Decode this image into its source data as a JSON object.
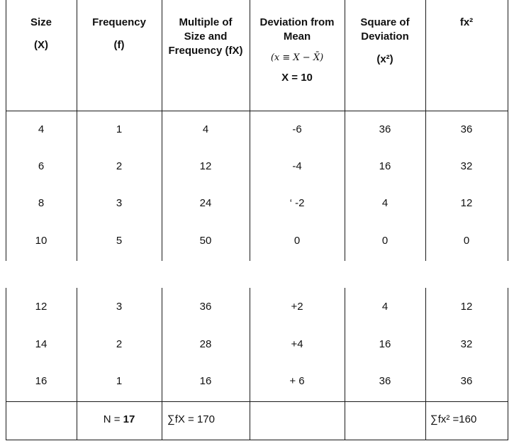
{
  "header": {
    "c0": {
      "line1": "Size",
      "line2": "(X)"
    },
    "c1": {
      "line1": "Frequency",
      "line2": "(f)"
    },
    "c2": {
      "line1": "Multiple of",
      "line2": "Size and",
      "line3": "Frequency (fX)"
    },
    "c3": {
      "line1": "Deviation from",
      "line2": "Mean",
      "formula": "(x ≡ X − X̄)",
      "mean": "X = 10"
    },
    "c4": {
      "line1": "Square of",
      "line2": "Deviation",
      "line3": "(x²)"
    },
    "c5": {
      "line1": "fx²"
    }
  },
  "rows": [
    [
      "4",
      "1",
      "4",
      "-6",
      "36",
      "36"
    ],
    [
      "6",
      "2",
      "12",
      "-4",
      "16",
      "32"
    ],
    [
      "8",
      "3",
      "24",
      "‘ -2",
      "4",
      "12"
    ],
    [
      "10",
      "5",
      "50",
      "0",
      "0",
      "0"
    ],
    [
      "12",
      "3",
      "36",
      "+2",
      "4",
      "12"
    ],
    [
      "14",
      "2",
      "28",
      "+4",
      "16",
      "32"
    ],
    [
      "16",
      "1",
      "16",
      "+ 6",
      "36",
      "36"
    ]
  ],
  "totals": {
    "n_label": "N = ",
    "n_value": "17",
    "sum_fx": "∑fX = 170",
    "sum_fx2": "∑fx² =160"
  }
}
